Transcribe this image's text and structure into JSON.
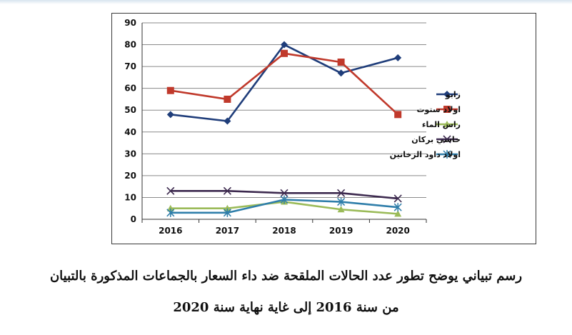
{
  "chart_data": {
    "type": "line",
    "categories": [
      "2016",
      "2017",
      "2018",
      "2019",
      "2020"
    ],
    "ylim": [
      0,
      90
    ],
    "yticks": [
      "0",
      "10",
      "20",
      "30",
      "40",
      "50",
      "60",
      "70",
      "80",
      "90"
    ],
    "grid": "horizontal",
    "legend_position": "right",
    "series": [
      {
        "name": "زابو",
        "color": "#1f3d7a",
        "marker": "diamond",
        "values": [
          48,
          45,
          80,
          67,
          74
        ]
      },
      {
        "name": "اولاد ستوت",
        "color": "#c0392b",
        "marker": "square",
        "values": [
          59,
          55,
          76,
          72,
          48
        ]
      },
      {
        "name": "راس الماء",
        "color": "#9bbb59",
        "marker": "triangle",
        "values": [
          5,
          5,
          8,
          4.5,
          2.5
        ]
      },
      {
        "name": "حاسي بركان",
        "color": "#3d2a4f",
        "marker": "x",
        "values": [
          13,
          13,
          12,
          12,
          9.5
        ]
      },
      {
        "name": "اولاد داود الزخانين",
        "color": "#2f7eaa",
        "marker": "star",
        "values": [
          3,
          3,
          9,
          8,
          5.5
        ]
      }
    ]
  },
  "caption": {
    "line1": "رسم تبياني يوضح تطور عدد الحالات الملقحة ضد داء السعار بالجماعات المذكورة بالتبيان",
    "line2": "من سنة 2016 إلى غاية نهاية سنة 2020"
  }
}
